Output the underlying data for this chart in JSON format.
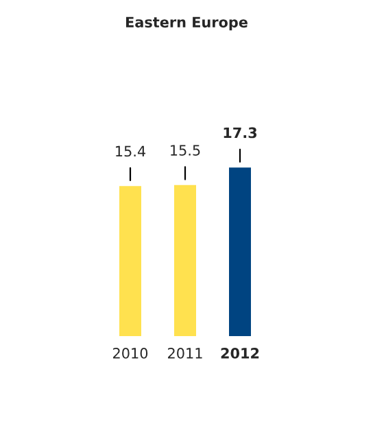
{
  "chart_data": {
    "type": "bar",
    "title": "Eastern Europe",
    "categories": [
      "2010",
      "2011",
      "2012"
    ],
    "values": [
      15.4,
      15.5,
      17.3
    ],
    "colors": [
      "#ffe14f",
      "#ffe14f",
      "#004481"
    ],
    "data_labels": true,
    "grid": false,
    "legend": false
  }
}
